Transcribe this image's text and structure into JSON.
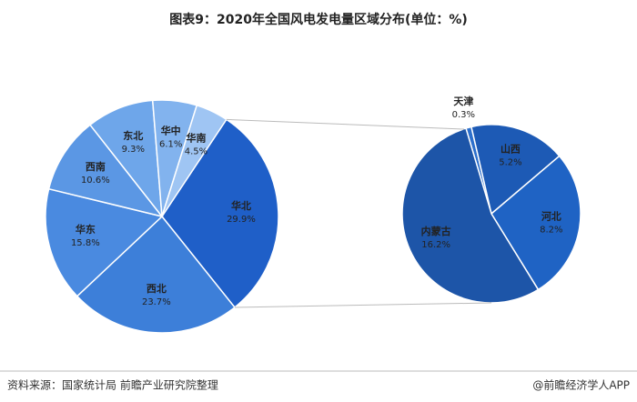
{
  "chart_data": [
    {
      "type": "pie",
      "title": "图表9：2020年全国风电发电量区域分布(单位：%)",
      "categories": [
        "华北",
        "西北",
        "华东",
        "西南",
        "东北",
        "华中",
        "华南"
      ],
      "values": [
        29.9,
        23.7,
        15.8,
        10.6,
        9.3,
        6.1,
        4.5
      ],
      "value_labels": [
        "29.9%",
        "23.7%",
        "15.8%",
        "10.6%",
        "9.3%",
        "6.1%",
        "4.5%"
      ],
      "colors": [
        "#1f5fc8",
        "#3d7fd9",
        "#4a8ae0",
        "#5b97e4",
        "#6ea6ea",
        "#82b3ee",
        "#9fc5f3"
      ]
    },
    {
      "type": "pie",
      "categories": [
        "天津",
        "山西",
        "河北",
        "内蒙古"
      ],
      "values": [
        0.3,
        5.2,
        8.2,
        16.2
      ],
      "value_labels": [
        "0.3%",
        "5.2%",
        "8.2%",
        "16.2%"
      ],
      "colors": [
        "#2c6fcc",
        "#1d5ab5",
        "#1f63c4",
        "#1d55a8"
      ]
    }
  ],
  "source": "资料来源：国家统计局 前瞻产业研究院整理",
  "credit": "@前瞻经济学人APP"
}
